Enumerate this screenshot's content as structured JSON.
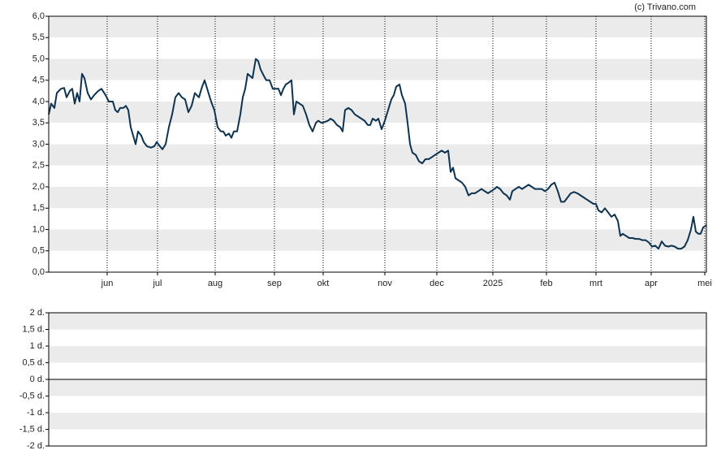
{
  "credit": "(c) Trivano.com",
  "chart_data": [
    {
      "type": "line",
      "color": "#0d3350",
      "xlim": [
        0,
        810
      ],
      "ylim": [
        0,
        6
      ],
      "xticks": [
        {
          "value": 72,
          "label": "jun"
        },
        {
          "value": 134,
          "label": "jul"
        },
        {
          "value": 205,
          "label": "aug"
        },
        {
          "value": 278,
          "label": "sep"
        },
        {
          "value": 338,
          "label": "okt"
        },
        {
          "value": 414,
          "label": "nov"
        },
        {
          "value": 478,
          "label": "dec"
        },
        {
          "value": 547,
          "label": "2025"
        },
        {
          "value": 613,
          "label": "feb"
        },
        {
          "value": 674,
          "label": "mrt"
        },
        {
          "value": 742,
          "label": "apr"
        },
        {
          "value": 808,
          "label": "mei"
        }
      ],
      "yticks": [
        {
          "value": 0,
          "label": "0,0"
        },
        {
          "value": 0.5,
          "label": "0,5"
        },
        {
          "value": 1,
          "label": "1,0"
        },
        {
          "value": 1.5,
          "label": "1,5"
        },
        {
          "value": 2,
          "label": "2,0"
        },
        {
          "value": 2.5,
          "label": "2,5"
        },
        {
          "value": 3,
          "label": "3,0"
        },
        {
          "value": 3.5,
          "label": "3,5"
        },
        {
          "value": 4,
          "label": "4,0"
        },
        {
          "value": 4.5,
          "label": "4,5"
        },
        {
          "value": 5,
          "label": "5,0"
        },
        {
          "value": 5.5,
          "label": "5,5"
        },
        {
          "value": 6,
          "label": "6,0"
        }
      ],
      "x": [
        0,
        3,
        7,
        10,
        15,
        19,
        22,
        26,
        29,
        32,
        35,
        38,
        41,
        44,
        48,
        52,
        56,
        61,
        65,
        70,
        74,
        79,
        82,
        85,
        88,
        92,
        95,
        98,
        101,
        104,
        107,
        110,
        114,
        117,
        121,
        126,
        130,
        133,
        137,
        140,
        144,
        148,
        152,
        156,
        160,
        164,
        168,
        172,
        176,
        180,
        185,
        189,
        192,
        196,
        200,
        204,
        208,
        212,
        215,
        218,
        222,
        225,
        228,
        232,
        236,
        239,
        242,
        245,
        248,
        251,
        255,
        258,
        261,
        265,
        268,
        272,
        276,
        280,
        283,
        286,
        289,
        292,
        296,
        299,
        302,
        305,
        309,
        313,
        317,
        321,
        325,
        329,
        332,
        336,
        340,
        344,
        347,
        351,
        355,
        359,
        362,
        365,
        369,
        373,
        377,
        381,
        385,
        389,
        393,
        396,
        399,
        403,
        406,
        410,
        414,
        418,
        422,
        425,
        428,
        432,
        435,
        439,
        442,
        445,
        448,
        452,
        456,
        460,
        464,
        468,
        472,
        476,
        480,
        484,
        488,
        492,
        495,
        498,
        501,
        505,
        509,
        513,
        517,
        521,
        525,
        529,
        533,
        537,
        541,
        545,
        549,
        552,
        556,
        560,
        564,
        568,
        571,
        575,
        579,
        583,
        587,
        591,
        595,
        599,
        603,
        607,
        611,
        615,
        619,
        623,
        627,
        631,
        635,
        639,
        643,
        647,
        651,
        655,
        659,
        663,
        667,
        671,
        674,
        677,
        681,
        685,
        689,
        693,
        697,
        701,
        704,
        707,
        711,
        715,
        719,
        723,
        727,
        731,
        735,
        739,
        743,
        747,
        751,
        755,
        759,
        763,
        767,
        771,
        775,
        779,
        783,
        787,
        791,
        794,
        797,
        800,
        803,
        806,
        810
      ],
      "values": [
        3.7,
        3.95,
        3.85,
        4.2,
        4.3,
        4.32,
        4.1,
        4.25,
        4.3,
        3.95,
        4.2,
        4.0,
        4.65,
        4.55,
        4.2,
        4.05,
        4.15,
        4.25,
        4.3,
        4.15,
        4.0,
        4.0,
        3.8,
        3.75,
        3.85,
        3.85,
        3.9,
        3.8,
        3.4,
        3.2,
        3.0,
        3.3,
        3.2,
        3.05,
        2.95,
        2.92,
        2.95,
        3.05,
        2.95,
        2.88,
        3.0,
        3.4,
        3.7,
        4.1,
        4.2,
        4.1,
        4.05,
        3.75,
        3.9,
        4.2,
        4.1,
        4.35,
        4.5,
        4.25,
        4.0,
        3.8,
        3.4,
        3.3,
        3.3,
        3.2,
        3.25,
        3.15,
        3.3,
        3.3,
        3.7,
        4.1,
        4.3,
        4.65,
        4.6,
        4.55,
        5.0,
        4.95,
        4.75,
        4.6,
        4.5,
        4.5,
        4.3,
        4.3,
        4.3,
        4.15,
        4.3,
        4.4,
        4.45,
        4.5,
        3.7,
        4.0,
        3.95,
        3.9,
        3.7,
        3.45,
        3.3,
        3.5,
        3.55,
        3.5,
        3.52,
        3.55,
        3.6,
        3.55,
        3.45,
        3.4,
        3.3,
        3.8,
        3.85,
        3.8,
        3.7,
        3.65,
        3.6,
        3.55,
        3.45,
        3.45,
        3.6,
        3.55,
        3.6,
        3.35,
        3.55,
        3.8,
        4.05,
        4.15,
        4.35,
        4.4,
        4.15,
        3.95,
        3.5,
        3.0,
        2.8,
        2.75,
        2.6,
        2.55,
        2.65,
        2.65,
        2.7,
        2.75,
        2.8,
        2.85,
        2.8,
        2.85,
        2.35,
        2.45,
        2.2,
        2.15,
        2.1,
        2.0,
        1.8,
        1.85,
        1.85,
        1.9,
        1.95,
        1.9,
        1.85,
        1.9,
        1.95,
        2.0,
        1.95,
        1.85,
        1.8,
        1.7,
        1.9,
        1.95,
        2.0,
        1.95,
        2.0,
        2.05,
        2.0,
        1.95,
        1.95,
        1.95,
        1.9,
        1.95,
        2.05,
        2.1,
        1.9,
        1.65,
        1.65,
        1.75,
        1.85,
        1.88,
        1.85,
        1.8,
        1.75,
        1.7,
        1.65,
        1.6,
        1.6,
        1.45,
        1.4,
        1.5,
        1.4,
        1.3,
        1.35,
        1.2,
        0.85,
        0.9,
        0.85,
        0.8,
        0.8,
        0.78,
        0.78,
        0.75,
        0.75,
        0.7,
        0.6,
        0.62,
        0.55,
        0.72,
        0.62,
        0.6,
        0.62,
        0.6,
        0.55,
        0.55,
        0.6,
        0.75,
        1.0,
        1.3,
        0.95,
        0.9,
        0.9,
        1.05,
        1.1
      ]
    },
    {
      "type": "bar",
      "ylim": [
        -2,
        2
      ],
      "yticks": [
        {
          "value": -2,
          "label": "-2 d."
        },
        {
          "value": -1.5,
          "label": "-1,5 d."
        },
        {
          "value": -1,
          "label": "-1 d."
        },
        {
          "value": -0.5,
          "label": "-0,5 d."
        },
        {
          "value": 0,
          "label": "0 d."
        },
        {
          "value": 0.5,
          "label": "0,5 d."
        },
        {
          "value": 1,
          "label": "1 d."
        },
        {
          "value": 1.5,
          "label": "1,5 d."
        },
        {
          "value": 2,
          "label": "2 d."
        }
      ]
    }
  ]
}
